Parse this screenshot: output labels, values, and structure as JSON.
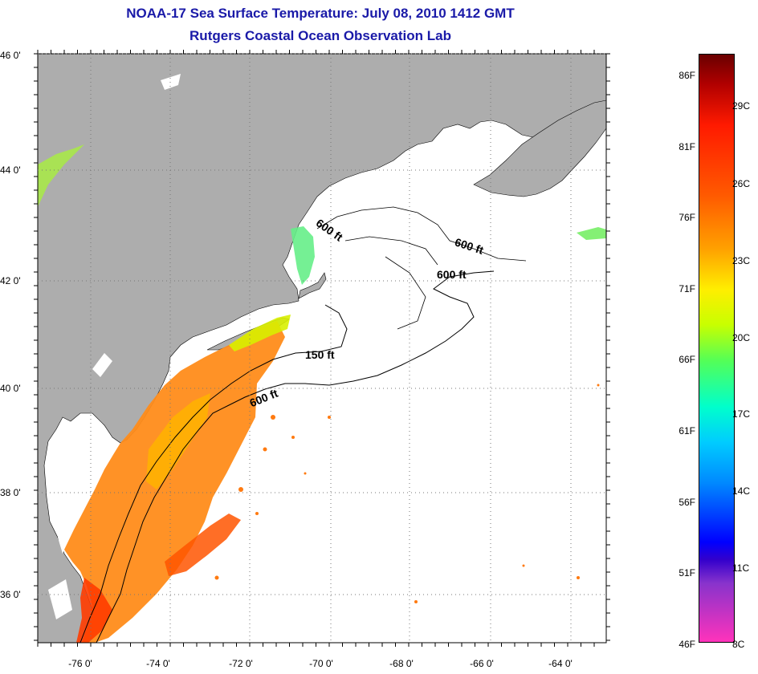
{
  "title": {
    "line1": "NOAA-17 Sea Surface Temperature:  July 08, 2010 1412 GMT",
    "line2": "Rutgers Coastal Ocean Observation Lab"
  },
  "axes": {
    "lat_labels": [
      "46 0'",
      "44 0'",
      "42 0'",
      "40 0'",
      "38 0'",
      "36 0'"
    ],
    "lon_labels": [
      "-76 0'",
      "-74 0'",
      "-72 0'",
      "-70 0'",
      "-68 0'",
      "-66 0'",
      "-64 0'"
    ]
  },
  "contours": {
    "c600a": "600 ft",
    "c600b": "600 ft",
    "c600c": "600 ft",
    "c150": "150 ft",
    "c600d": "600 ft"
  },
  "colorbar": {
    "fahrenheit": [
      "86F",
      "81F",
      "76F",
      "71F",
      "66F",
      "61F",
      "56F",
      "51F",
      "46F"
    ],
    "celsius": [
      "29C",
      "26C",
      "23C",
      "20C",
      "17C",
      "14C",
      "11C",
      "8C"
    ]
  },
  "colors": {
    "land": "#adadad",
    "frame": "#000000",
    "title": "#1a1aa8"
  }
}
